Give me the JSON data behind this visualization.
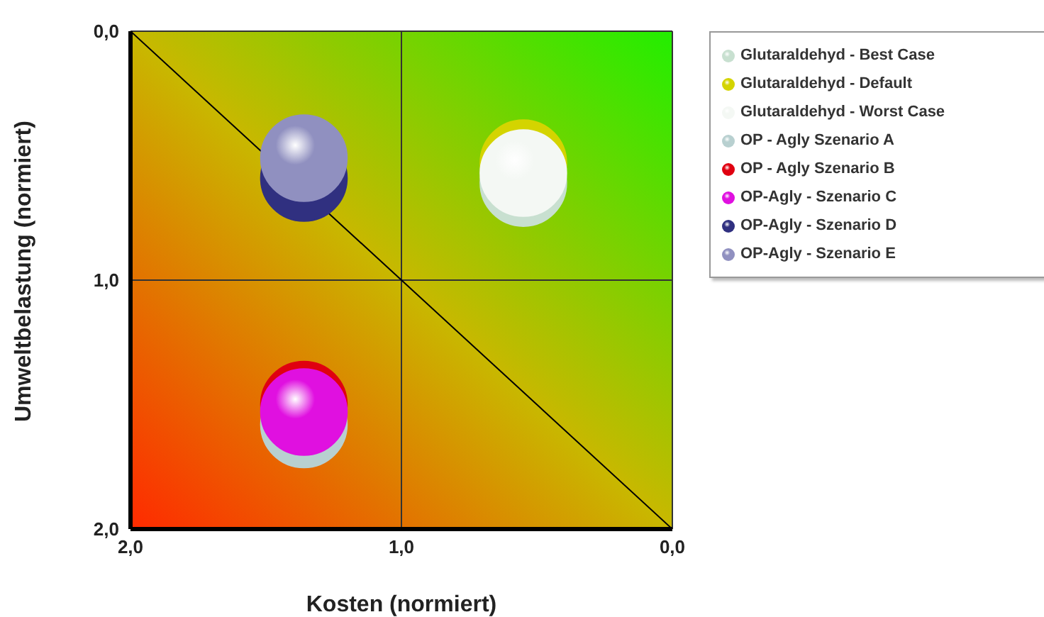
{
  "chart_data": {
    "type": "bubble",
    "xlabel": "Kosten (normiert)",
    "ylabel": "Umweltbelastung (normiert)",
    "xlim": [
      2,
      0
    ],
    "ylim": [
      2,
      0
    ],
    "xticks": [
      {
        "value": 2,
        "label": "2,0"
      },
      {
        "value": 1,
        "label": "1,0"
      },
      {
        "value": 0,
        "label": "0,0"
      }
    ],
    "yticks": [
      {
        "value": 2,
        "label": "2,0"
      },
      {
        "value": 1,
        "label": "1,0"
      },
      {
        "value": 0,
        "label": "0,0"
      }
    ],
    "grid": true,
    "legend": "top right",
    "series": [
      {
        "type": "line",
        "color": "#000000",
        "x": [
          2,
          0
        ],
        "values": [
          0,
          2
        ]
      },
      {
        "name": "Glutaraldehyd - Best Case",
        "color": "#c8e0d0",
        "x": [
          0.55
        ],
        "values": [
          0.61
        ],
        "sizes": [
          1
        ]
      },
      {
        "name": "Glutaraldehyd - Default",
        "color": "#d4d400",
        "x": [
          0.55
        ],
        "values": [
          0.53
        ],
        "sizes": [
          1
        ]
      },
      {
        "name": "Glutaraldehyd - Worst Case",
        "color": "#f4f8f4",
        "x": [
          0.55
        ],
        "values": [
          0.57
        ],
        "sizes": [
          1
        ]
      },
      {
        "name": "OP - Agly Szenario A",
        "color": "#b8d0d0",
        "x": [
          1.36
        ],
        "values": [
          1.58
        ],
        "sizes": [
          1
        ]
      },
      {
        "name": "OP - Agly Szenario B",
        "color": "#e00010",
        "x": [
          1.36
        ],
        "values": [
          1.5
        ],
        "sizes": [
          1
        ]
      },
      {
        "name": "OP-Agly - Szenario C",
        "color": "#e010e0",
        "x": [
          1.36
        ],
        "values": [
          1.53
        ],
        "sizes": [
          1
        ]
      },
      {
        "name": "OP-Agly - Szenario D",
        "color": "#303080",
        "x": [
          1.36
        ],
        "values": [
          0.59
        ],
        "sizes": [
          1
        ]
      },
      {
        "name": "OP-Agly - Szenario E",
        "color": "#9090c0",
        "x": [
          1.36
        ],
        "values": [
          0.51
        ],
        "sizes": [
          1
        ]
      }
    ]
  }
}
